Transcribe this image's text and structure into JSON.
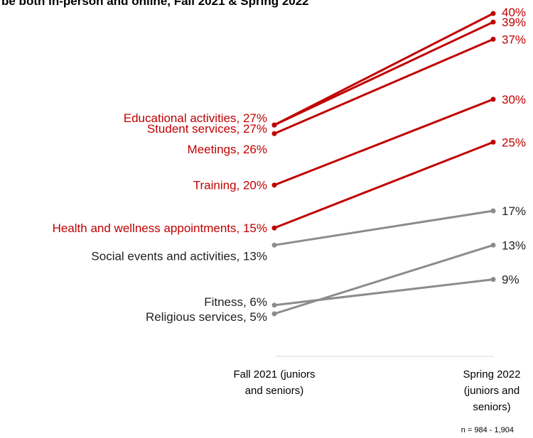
{
  "chart_data": {
    "type": "line",
    "title": "be both in-person and online, Fall 2021 & Spring 2022",
    "x_labels": [
      [
        "Fall 2021 (juniors",
        "and seniors)"
      ],
      [
        "Spring 2022",
        "(juniors and",
        "seniors)"
      ]
    ],
    "note": "n = 984 - 1,904",
    "colors": {
      "highlight": "#c00000",
      "muted": "#8c8c8c",
      "axis": "#d9d9d9"
    },
    "ylim": [
      0,
      42
    ],
    "series": [
      {
        "name": "Educational activities",
        "start": 27,
        "end": 40,
        "start_label": "Educational activities, 27%",
        "end_label": "40%",
        "group": "highlight"
      },
      {
        "name": "Student services",
        "start": 27,
        "end": 39,
        "start_label": "Student services, 27%",
        "end_label": "39%",
        "group": "highlight"
      },
      {
        "name": "Meetings",
        "start": 26,
        "end": 37,
        "start_label": "Meetings, 26%",
        "end_label": "37%",
        "group": "highlight"
      },
      {
        "name": "Training",
        "start": 20,
        "end": 30,
        "start_label": "Training, 20%",
        "end_label": "30%",
        "group": "highlight"
      },
      {
        "name": "Health and wellness appointments",
        "start": 15,
        "end": 25,
        "start_label": "Health and wellness appointments, 15%",
        "end_label": "25%",
        "group": "highlight"
      },
      {
        "name": "Social events and activities",
        "start": 13,
        "end": 17,
        "start_label": "Social events and activities, 13%",
        "end_label": "17%",
        "group": "muted"
      },
      {
        "name": "Fitness",
        "start": 6,
        "end": 9,
        "start_label": "Fitness, 6%",
        "end_label": "9%",
        "group": "muted"
      },
      {
        "name": "Religious services",
        "start": 5,
        "end": 13,
        "start_label": "Religious services, 5%",
        "end_label": "13%",
        "group": "muted"
      }
    ]
  }
}
